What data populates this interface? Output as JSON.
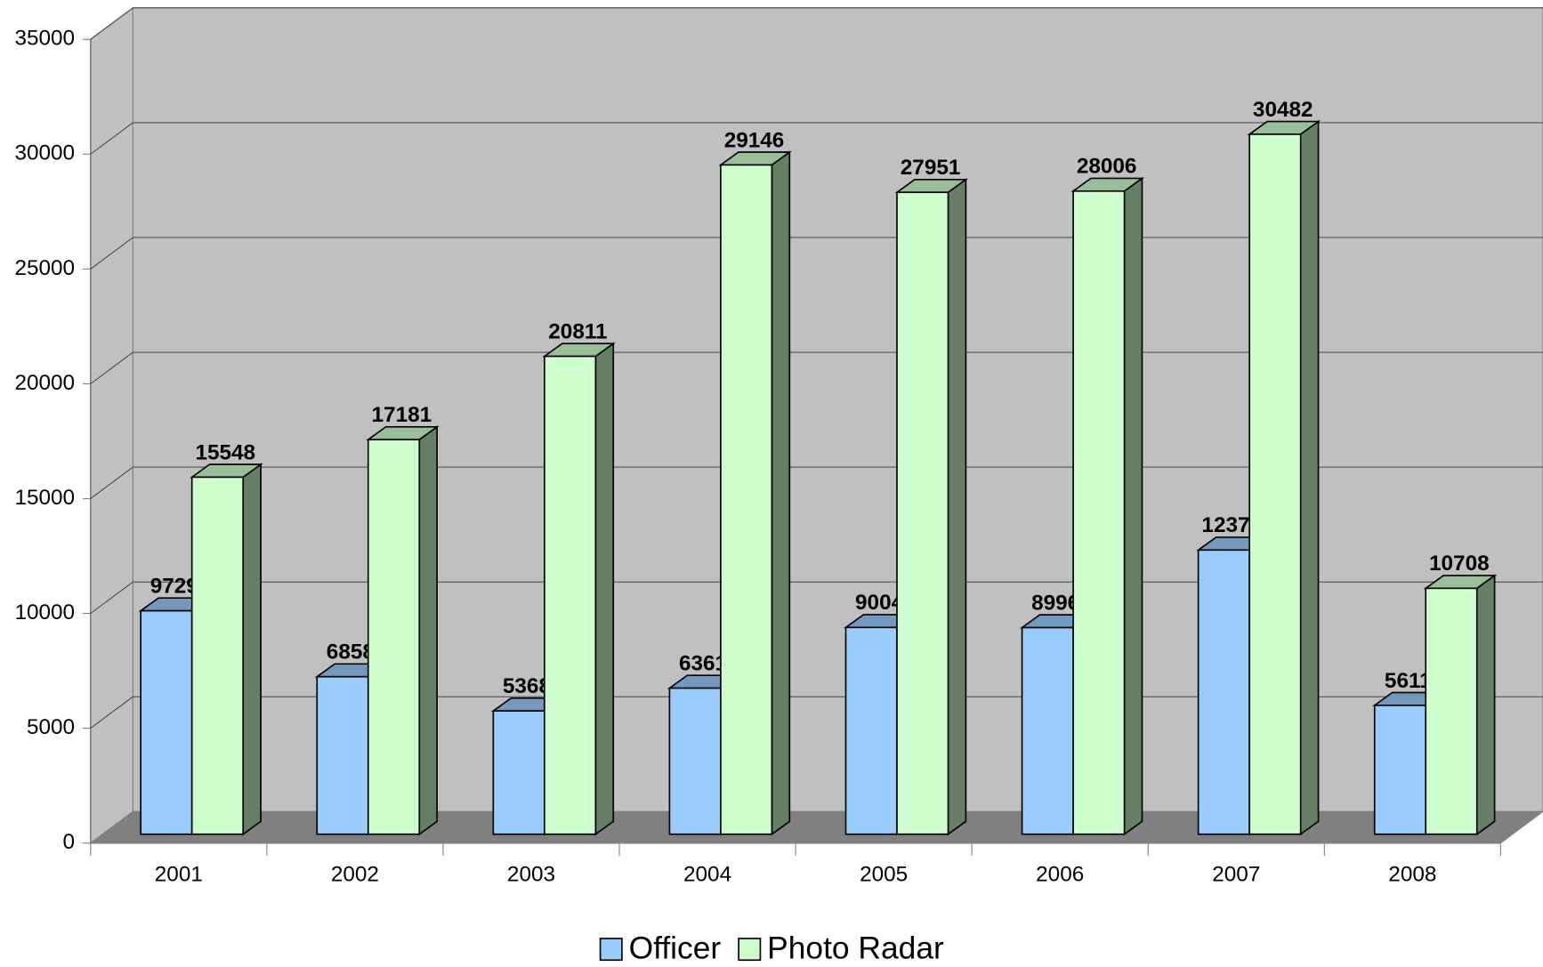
{
  "chart_data": {
    "type": "bar3d",
    "categories": [
      "2001",
      "2002",
      "2003",
      "2004",
      "2005",
      "2006",
      "2007",
      "2008"
    ],
    "series": [
      {
        "name": "Officer",
        "color": "#99ccff",
        "values": [
          9729,
          6858,
          5368,
          6361,
          9004,
          8996,
          12375,
          5611
        ]
      },
      {
        "name": "Photo Radar",
        "color": "#ccffcc",
        "values": [
          15548,
          17181,
          20811,
          29146,
          27951,
          28006,
          30482,
          10708
        ]
      }
    ],
    "ylim": [
      0,
      35000
    ],
    "yticks": [
      0,
      5000,
      10000,
      15000,
      20000,
      25000,
      30000,
      35000
    ],
    "grid": true,
    "legend": "bottom"
  }
}
